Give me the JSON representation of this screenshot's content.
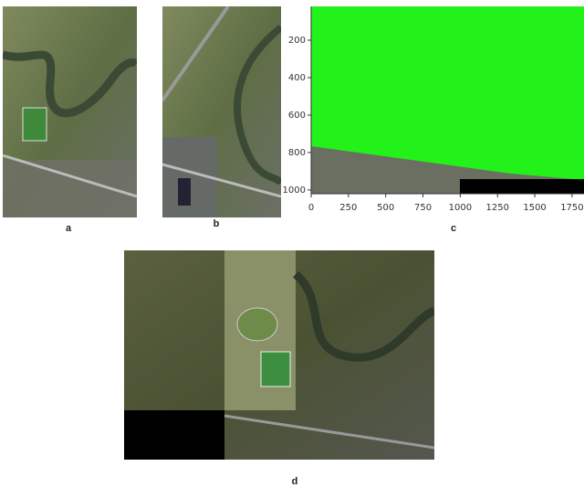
{
  "panels": [
    {
      "label": "a"
    },
    {
      "label": "b"
    },
    {
      "label": "c"
    },
    {
      "label": "d"
    }
  ],
  "panel_c_axes": {
    "xlim": [
      0,
      1830
    ],
    "ylim": [
      0,
      1020
    ],
    "xticks": [
      0,
      250,
      500,
      750,
      1000,
      1250,
      1500,
      1750
    ],
    "yticks": [
      200,
      400,
      600,
      800,
      1000
    ]
  }
}
